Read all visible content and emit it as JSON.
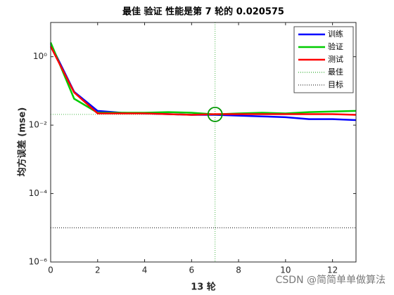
{
  "chart_data": {
    "type": "line",
    "title": "最佳 验证 性能是第 7 轮的 0.020575",
    "xlabel": "13 轮",
    "ylabel": "均方误差 (mse)",
    "x": [
      0,
      1,
      2,
      3,
      4,
      5,
      6,
      7,
      8,
      9,
      10,
      11,
      12,
      13
    ],
    "series": [
      {
        "name": "训练",
        "color": "#0000ff",
        "values": [
          2.3,
          0.094,
          0.026,
          0.023,
          0.022,
          0.021,
          0.02,
          0.02,
          0.019,
          0.018,
          0.017,
          0.015,
          0.015,
          0.014
        ]
      },
      {
        "name": "验证",
        "color": "#00cc00",
        "values": [
          2.6,
          0.059,
          0.023,
          0.023,
          0.023,
          0.024,
          0.023,
          0.020575,
          0.022,
          0.023,
          0.022,
          0.024,
          0.025,
          0.026
        ]
      },
      {
        "name": "测试",
        "color": "#ff0000",
        "values": [
          2.0,
          0.09,
          0.022,
          0.022,
          0.022,
          0.021,
          0.02,
          0.021,
          0.021,
          0.021,
          0.021,
          0.021,
          0.021,
          0.02
        ]
      }
    ],
    "best": {
      "name": "最佳",
      "color": "#009900",
      "epoch": 7,
      "value": 0.020575
    },
    "goal": {
      "name": "目标",
      "color": "#000000",
      "value": 1e-05
    },
    "xlim": [
      0,
      13
    ],
    "xticks": [
      0,
      2,
      4,
      6,
      8,
      10,
      12
    ],
    "ylim": [
      1e-06,
      10
    ],
    "log_y": true,
    "yticks": [
      {
        "value": 1,
        "label": "10⁰"
      },
      {
        "value": 0.01,
        "label": "10⁻²"
      },
      {
        "value": 0.0001,
        "label": "10⁻⁴"
      },
      {
        "value": 1e-06,
        "label": "10⁻⁶"
      }
    ],
    "legend": "upper right",
    "watermark": "CSDN @简简单单做算法"
  }
}
